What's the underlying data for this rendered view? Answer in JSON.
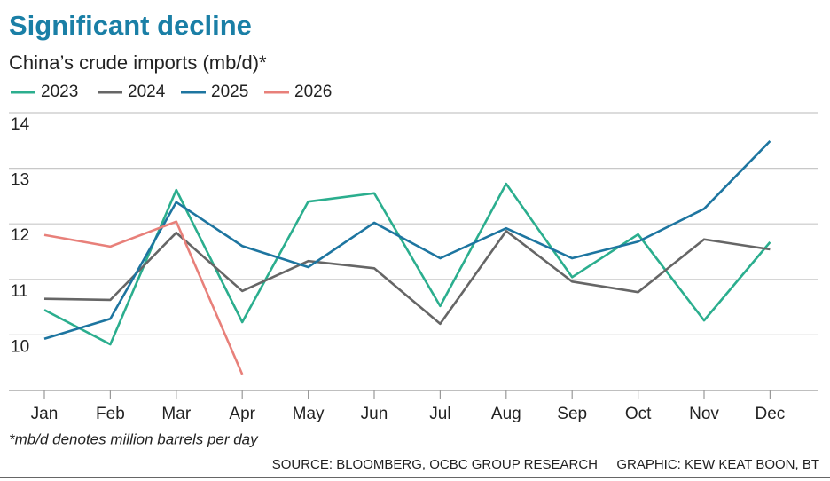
{
  "chart_data": {
    "type": "line",
    "title": "Significant decline",
    "subtitle": "China’s crude imports (mb/d)*",
    "footnote": "*mb/d denotes million barrels per day",
    "source": "SOURCE: BLOOMBERG, OCBC GROUP RESEARCH",
    "credit": "GRAPHIC: KEW KEAT BOON, BT",
    "categories": [
      "Jan",
      "Feb",
      "Mar",
      "Apr",
      "May",
      "Jun",
      "Jul",
      "Aug",
      "Sep",
      "Oct",
      "Nov",
      "Dec"
    ],
    "series": [
      {
        "name": "2023",
        "color": "#2bae8e",
        "values": [
          10.45,
          9.83,
          12.61,
          10.23,
          12.4,
          12.55,
          10.52,
          12.72,
          11.04,
          11.81,
          10.26,
          11.67
        ]
      },
      {
        "name": "2024",
        "color": "#666666",
        "values": [
          10.65,
          10.63,
          11.84,
          10.79,
          11.33,
          11.2,
          10.2,
          11.87,
          10.96,
          10.77,
          11.72,
          11.54
        ]
      },
      {
        "name": "2025",
        "color": "#1d75a0",
        "values": [
          9.93,
          10.29,
          12.39,
          11.6,
          11.22,
          12.02,
          11.38,
          11.92,
          11.38,
          11.68,
          12.27,
          13.49
        ]
      },
      {
        "name": "2026",
        "color": "#e8807a",
        "values": [
          11.8,
          11.59,
          12.04,
          9.29,
          null,
          null,
          null,
          null,
          null,
          null,
          null,
          null
        ]
      }
    ],
    "ylim": [
      9,
      14
    ],
    "yticks": [
      10,
      11,
      12,
      13,
      14
    ],
    "grid": true,
    "legend": "top"
  }
}
